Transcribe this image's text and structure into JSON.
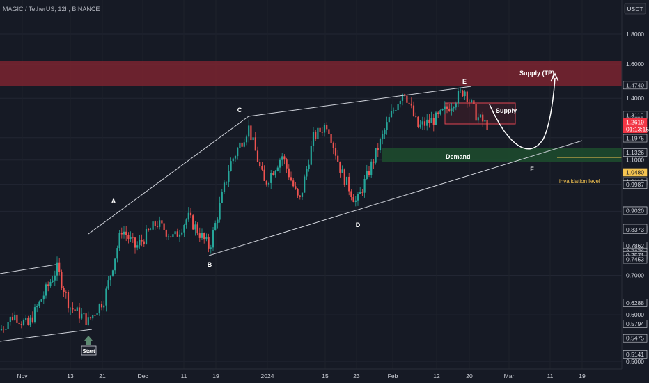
{
  "chart_title": "MAGIC / TetherUS, 12h, BINANCE",
  "currency": "USDT",
  "colors": {
    "background": "#161a25",
    "up_candle": "#26a69a",
    "down_candle": "#ef5350",
    "supply_zone": "#7a2430",
    "demand_zone": "#1d4a2e",
    "trendline": "#d1d4dc",
    "invalidation": "#f5c451"
  },
  "chart_data": {
    "type": "candlestick",
    "pair": "MAGIC / TetherUS",
    "timeframe": "12h",
    "exchange": "BINANCE",
    "y_scale": "log",
    "ylim": [
      0.49,
      2.1
    ],
    "x_ticks": [
      "Nov",
      "13",
      "21",
      "Dec",
      "11",
      "19",
      "2024",
      "15",
      "23",
      "Feb",
      "12",
      "20",
      "Mar",
      "11",
      "19"
    ],
    "y_ticks": [
      "1.8000",
      "1.6000",
      "1.4000",
      "1.2000",
      "1.1000",
      "1.0000",
      "0.9000",
      "0.7000",
      "0.6000",
      "0.5000"
    ],
    "price_labels": [
      {
        "text": "1.4740",
        "style": "box"
      },
      {
        "text": "1.3110",
        "style": "box"
      },
      {
        "text": "1.3110",
        "style": "box"
      },
      {
        "text": "1.2619",
        "style": "current"
      },
      {
        "text": "01:13:15",
        "style": "current"
      },
      {
        "text": "1.1975",
        "style": "box"
      },
      {
        "text": "1.1326",
        "style": "box"
      },
      {
        "text": "1.0480",
        "style": "yellow"
      },
      {
        "text": "1.0113",
        "style": "box"
      },
      {
        "text": "0.9987",
        "style": "box"
      },
      {
        "text": "0.9020",
        "style": "box"
      },
      {
        "text": "0.9020",
        "style": "box"
      },
      {
        "text": "0.8426",
        "style": "box"
      },
      {
        "text": "0.8373",
        "style": "box"
      },
      {
        "text": "0.7862",
        "style": "box"
      },
      {
        "text": "0.7676",
        "style": "box"
      },
      {
        "text": "0.7571",
        "style": "box"
      },
      {
        "text": "0.7453",
        "style": "box"
      },
      {
        "text": "0.6288",
        "style": "box"
      },
      {
        "text": "0.5794",
        "style": "box"
      },
      {
        "text": "0.5475",
        "style": "box"
      },
      {
        "text": "0.5141",
        "style": "box"
      }
    ],
    "current_price": 1.2619,
    "countdown": "01:13:15",
    "wave_points": [
      "A",
      "B",
      "C",
      "D",
      "E",
      "F"
    ],
    "zones": [
      {
        "name": "Supply (TP)",
        "low": 1.475,
        "high": 1.6
      },
      {
        "name": "Supply",
        "low": 1.265,
        "high": 1.36
      },
      {
        "name": "Demand",
        "low": 1.08,
        "high": 1.135
      }
    ],
    "invalidation": {
      "label": "invalidation level",
      "price": 1.048
    },
    "start_label": "Start"
  }
}
